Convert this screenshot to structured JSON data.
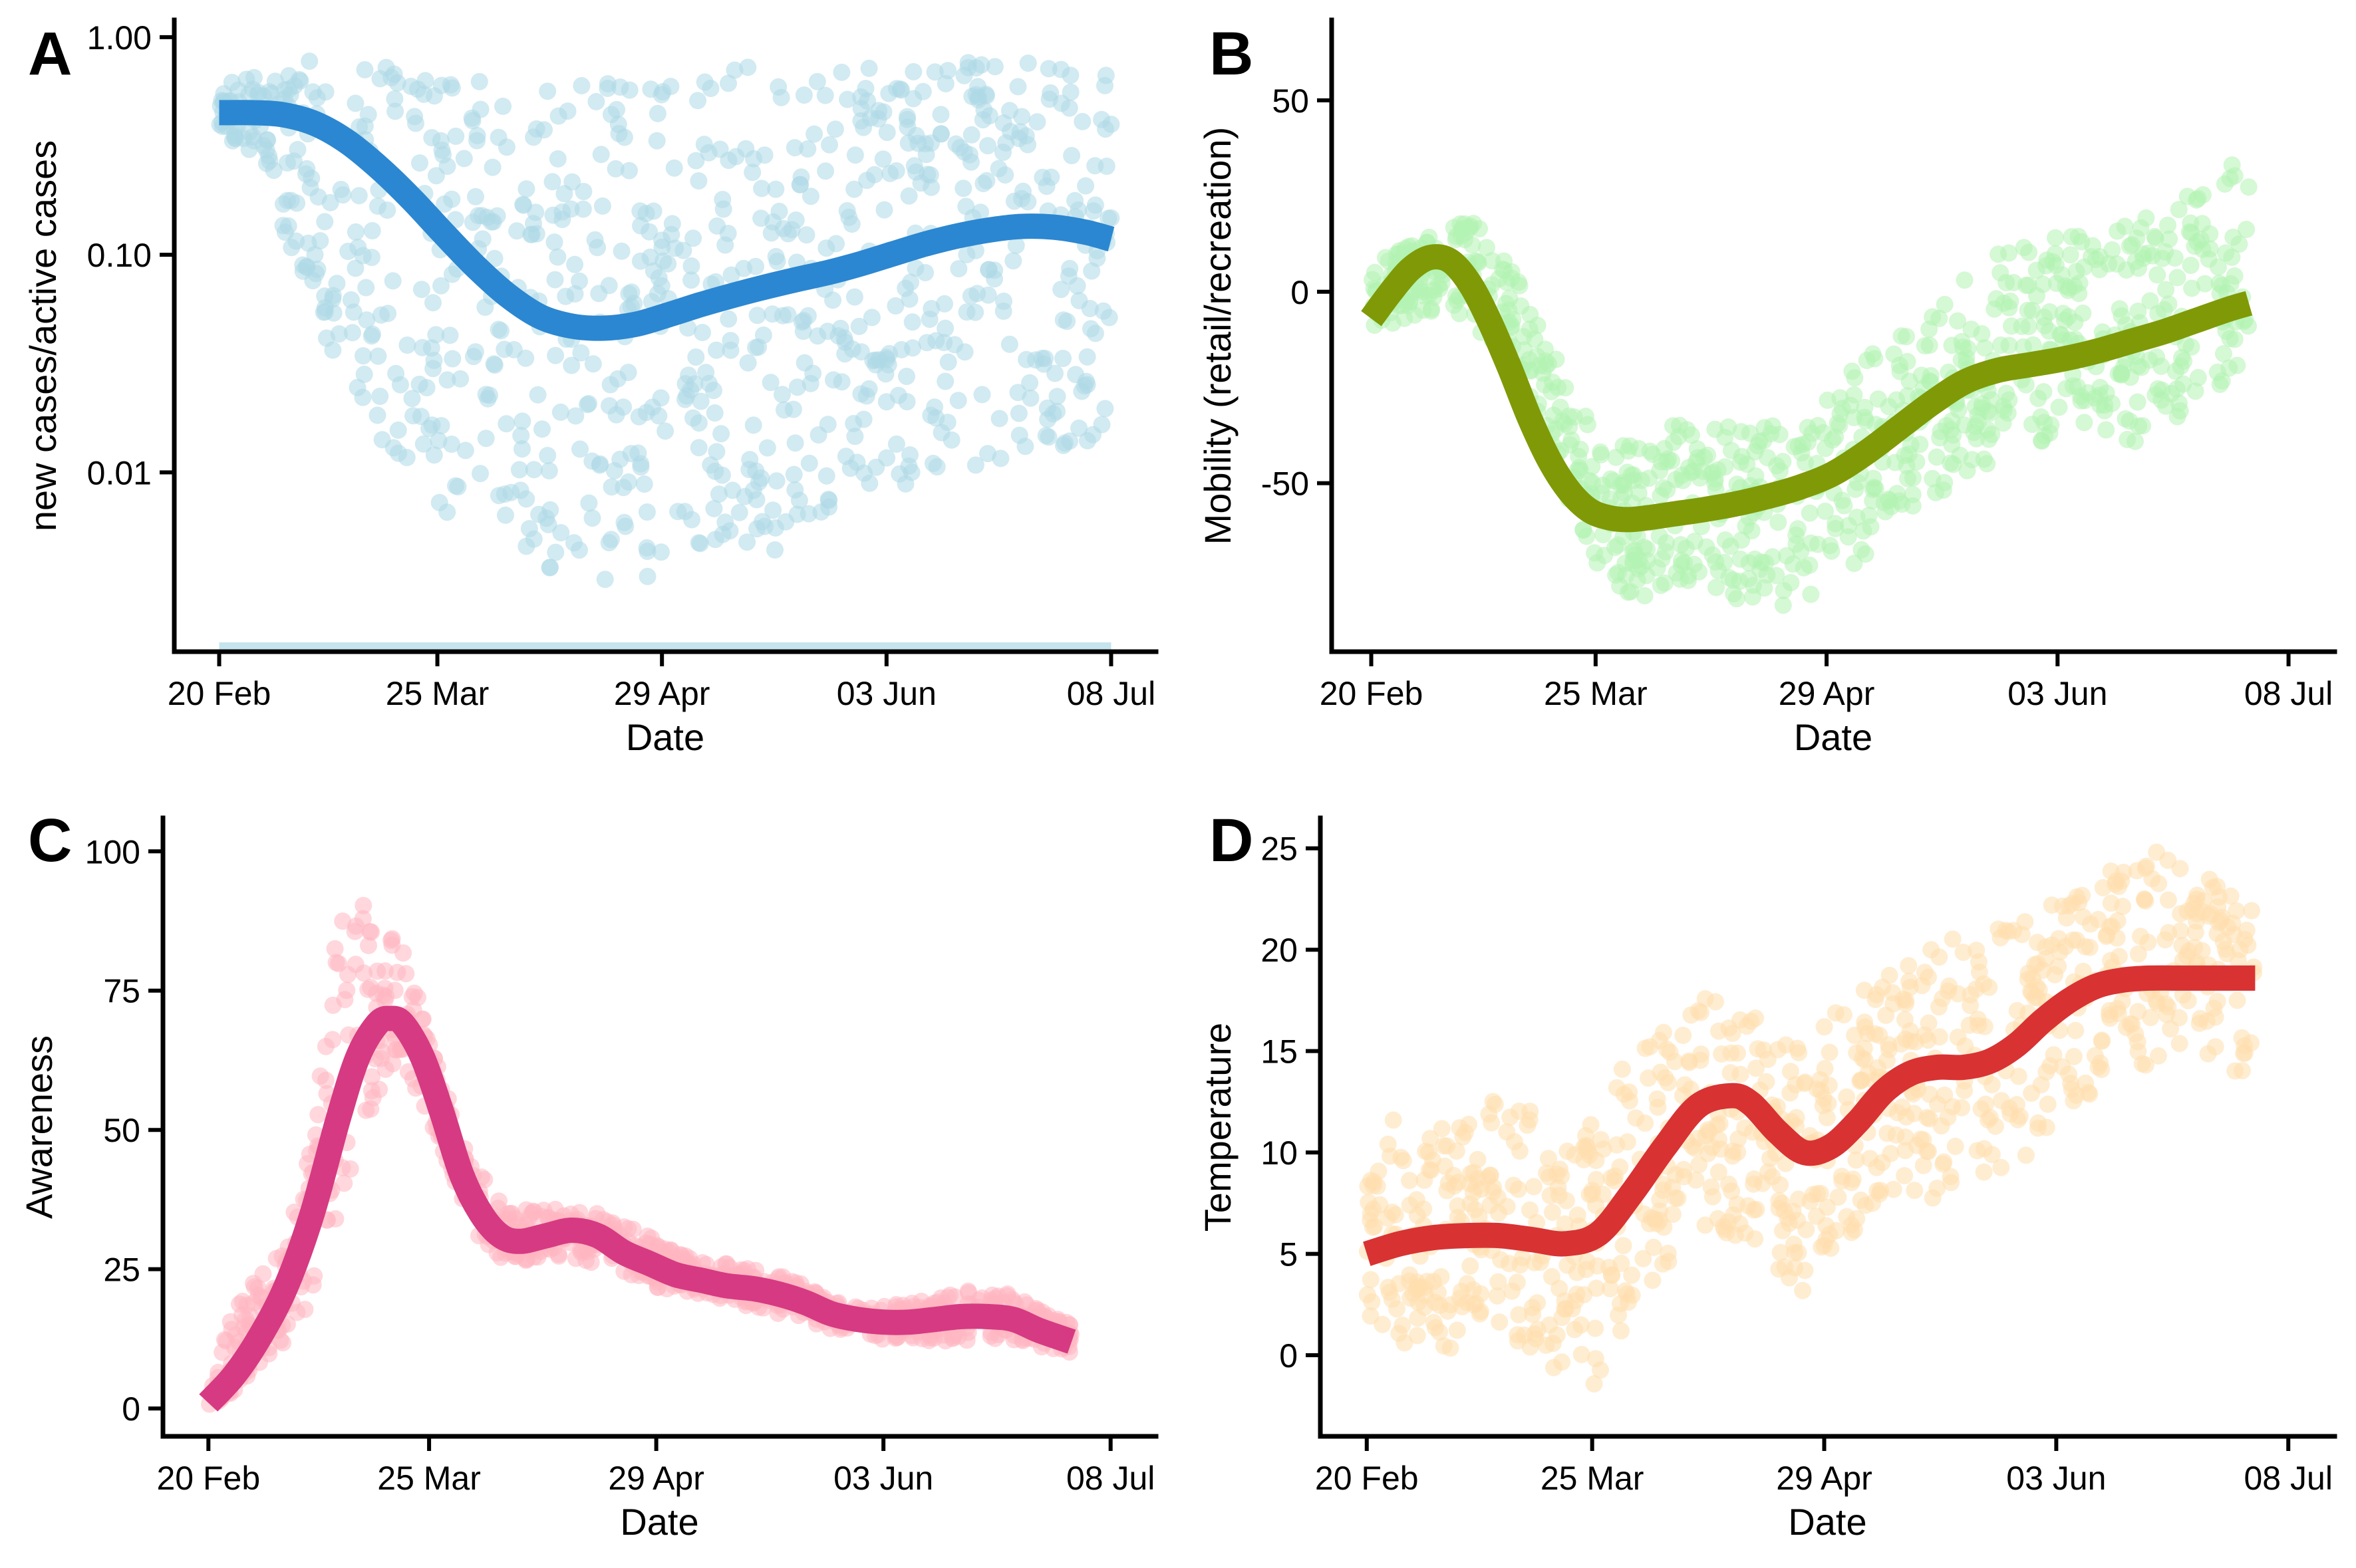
{
  "chart_data": [
    {
      "panel": "A",
      "type": "scatter",
      "xlabel": "Date",
      "ylabel": "new cases/active cases",
      "x_ticks": [
        "20 Feb",
        "25 Mar",
        "29 Apr",
        "03 Jun",
        "08 Jul"
      ],
      "x_tick_days": [
        0,
        34,
        69,
        104,
        139
      ],
      "xlim": [
        -7,
        146
      ],
      "yscale": "log",
      "y_ticks": [
        "0.01",
        "0.10",
        "1.00"
      ],
      "y_tick_values": [
        0.01,
        0.1,
        1.0
      ],
      "ylim": [
        0.0015,
        1.2
      ],
      "grid": false,
      "point_color": "#ADD8E6",
      "line_color": "#2B87D1",
      "series": [
        {
          "kind": "smooth",
          "x": [
            0,
            5,
            10,
            15,
            20,
            25,
            30,
            35,
            40,
            45,
            50,
            55,
            60,
            65,
            70,
            75,
            80,
            85,
            90,
            95,
            100,
            105,
            110,
            115,
            120,
            125,
            130,
            135,
            139
          ],
          "y": [
            0.45,
            0.45,
            0.44,
            0.4,
            0.33,
            0.25,
            0.18,
            0.125,
            0.088,
            0.065,
            0.052,
            0.047,
            0.046,
            0.048,
            0.053,
            0.059,
            0.065,
            0.071,
            0.077,
            0.083,
            0.091,
            0.101,
            0.112,
            0.122,
            0.13,
            0.135,
            0.134,
            0.127,
            0.118
          ]
        }
      ],
      "scatter_band": {
        "x": [
          0,
          5,
          10,
          15,
          20,
          25,
          30,
          35,
          40,
          45,
          50,
          55,
          60,
          65,
          70,
          75,
          80,
          85,
          90,
          95,
          100,
          105,
          110,
          115,
          120,
          125,
          130,
          135,
          139
        ],
        "low": [
          0.35,
          0.3,
          0.12,
          0.05,
          0.025,
          0.012,
          0.008,
          0.006,
          0.005,
          0.004,
          0.0035,
          0.003,
          0.003,
          0.003,
          0.0035,
          0.004,
          0.004,
          0.004,
          0.005,
          0.006,
          0.007,
          0.008,
          0.009,
          0.01,
          0.011,
          0.012,
          0.012,
          0.01,
          0.008
        ],
        "high": [
          0.6,
          0.65,
          0.7,
          0.8,
          0.85,
          0.88,
          0.85,
          0.75,
          0.65,
          0.6,
          0.58,
          0.6,
          0.62,
          0.65,
          0.68,
          0.7,
          0.72,
          0.74,
          0.75,
          0.76,
          0.77,
          0.78,
          0.78,
          0.78,
          0.78,
          0.78,
          0.78,
          0.78,
          0.78
        ]
      }
    },
    {
      "panel": "B",
      "type": "scatter",
      "xlabel": "Date",
      "ylabel": "Mobility (retail/recreation)",
      "x_ticks": [
        "20 Feb",
        "25 Mar",
        "29 Apr",
        "03 Jun",
        "08 Jul"
      ],
      "x_tick_days": [
        0,
        34,
        69,
        104,
        139
      ],
      "xlim": [
        -6,
        146
      ],
      "y_ticks": [
        "-50",
        "0",
        "50"
      ],
      "y_tick_values": [
        -50,
        0,
        50
      ],
      "ylim": [
        -94,
        71
      ],
      "grid": false,
      "point_color": "#B2F2B2",
      "line_color": "#7F9A06",
      "series": [
        {
          "kind": "smooth",
          "x": [
            0,
            3,
            6,
            9,
            12,
            15,
            18,
            21,
            24,
            27,
            30,
            33,
            36,
            39,
            42,
            46,
            50,
            55,
            60,
            65,
            70,
            75,
            80,
            85,
            90,
            95,
            100,
            105,
            110,
            115,
            120,
            125,
            130,
            133
          ],
          "y": [
            -7,
            0,
            6,
            9,
            8,
            2,
            -8,
            -20,
            -33,
            -44,
            -52,
            -57,
            -59,
            -59.5,
            -59,
            -58,
            -57,
            -55.5,
            -53.5,
            -51,
            -47.5,
            -42,
            -35.5,
            -29,
            -23.5,
            -20.5,
            -19,
            -17.5,
            -15.5,
            -13,
            -10.5,
            -7.5,
            -4.5,
            -3
          ]
        }
      ],
      "scatter_band": {
        "x": [
          0,
          5,
          10,
          15,
          20,
          25,
          30,
          35,
          40,
          45,
          50,
          55,
          60,
          65,
          70,
          75,
          80,
          85,
          90,
          95,
          100,
          105,
          110,
          115,
          120,
          125,
          130,
          133
        ],
        "low": [
          -10,
          -8,
          -5,
          -8,
          -20,
          -35,
          -55,
          -75,
          -80,
          -78,
          -75,
          -80,
          -82,
          -82,
          -75,
          -70,
          -60,
          -55,
          -50,
          -45,
          -42,
          -40,
          -38,
          -40,
          -35,
          -30,
          -25,
          -20
        ],
        "high": [
          8,
          12,
          15,
          20,
          10,
          -5,
          -25,
          -40,
          -40,
          -35,
          -30,
          -35,
          -35,
          -30,
          -25,
          -15,
          -10,
          -5,
          5,
          10,
          15,
          15,
          15,
          20,
          25,
          30,
          35,
          35
        ]
      }
    },
    {
      "panel": "C",
      "type": "scatter",
      "xlabel": "Date",
      "ylabel": "Awareness",
      "x_ticks": [
        "20 Feb",
        "25 Mar",
        "29 Apr",
        "03 Jun",
        "08 Jul"
      ],
      "x_tick_days": [
        0,
        34,
        69,
        104,
        139
      ],
      "xlim": [
        -7,
        146
      ],
      "y_ticks": [
        "0",
        "25",
        "50",
        "75",
        "100"
      ],
      "y_tick_values": [
        0,
        25,
        50,
        75,
        100
      ],
      "ylim": [
        -5,
        106
      ],
      "grid": false,
      "point_color": "#FFB6C1",
      "line_color": "#D63A82",
      "series": [
        {
          "kind": "smooth",
          "x": [
            0,
            4,
            8,
            12,
            16,
            20,
            23,
            26,
            28,
            30,
            33,
            36,
            39,
            42,
            45,
            48,
            52,
            56,
            60,
            64,
            68,
            72,
            76,
            80,
            84,
            88,
            92,
            96,
            100,
            104,
            108,
            112,
            116,
            120,
            124,
            128,
            133
          ],
          "y": [
            1,
            6,
            13,
            22,
            35,
            52,
            63,
            69,
            70,
            69,
            63,
            53,
            42,
            35,
            31,
            30,
            31,
            32,
            31,
            28,
            26,
            24,
            23,
            22,
            21.5,
            20.5,
            19,
            17,
            16,
            15.5,
            15.5,
            16,
            16.5,
            16.5,
            16,
            14,
            12
          ]
        }
      ],
      "scatter_band": {
        "x": [
          0,
          4,
          8,
          12,
          16,
          20,
          23,
          26,
          28,
          30,
          33,
          36,
          39,
          42,
          45,
          48,
          52,
          56,
          60,
          64,
          68,
          72,
          76,
          80,
          84,
          88,
          92,
          96,
          100,
          104,
          108,
          112,
          116,
          120,
          124,
          128,
          133
        ],
        "low": [
          0,
          3,
          8,
          12,
          20,
          35,
          45,
          55,
          60,
          62,
          55,
          45,
          37,
          30,
          27,
          26,
          27,
          27,
          26,
          24,
          22,
          21,
          20,
          19,
          18,
          17,
          16,
          14,
          13,
          12,
          12,
          12,
          12,
          12,
          12,
          11,
          10
        ],
        "high": [
          3,
          18,
          25,
          30,
          48,
          90,
          95,
          87,
          85,
          83,
          72,
          60,
          48,
          42,
          37,
          36,
          36,
          36,
          35,
          33,
          31,
          28,
          27,
          26,
          25,
          24,
          22,
          20,
          19,
          19,
          19,
          20,
          22,
          21,
          21,
          18,
          15
        ]
      }
    },
    {
      "panel": "D",
      "type": "scatter",
      "xlabel": "Date",
      "ylabel": "Temperature",
      "x_ticks": [
        "20 Feb",
        "25 Mar",
        "29 Apr",
        "03 Jun",
        "08 Jul"
      ],
      "x_tick_days": [
        0,
        34,
        69,
        104,
        139
      ],
      "xlim": [
        -7,
        146
      ],
      "y_ticks": [
        "0",
        "5",
        "10",
        "15",
        "20",
        "25"
      ],
      "y_tick_values": [
        0,
        5,
        10,
        15,
        20,
        25
      ],
      "ylim": [
        -4,
        26.5
      ],
      "grid": false,
      "point_color": "#FFDEAD",
      "line_color": "#D93232",
      "series": [
        {
          "kind": "smooth",
          "x": [
            0,
            5,
            10,
            15,
            20,
            25,
            30,
            35,
            40,
            45,
            50,
            55,
            58,
            62,
            66,
            70,
            74,
            78,
            82,
            86,
            90,
            94,
            98,
            102,
            106,
            110,
            114,
            118,
            122,
            126,
            130,
            134
          ],
          "y": [
            5,
            5.5,
            5.8,
            5.9,
            5.9,
            5.7,
            5.5,
            6,
            8,
            10.3,
            12.3,
            12.8,
            12.4,
            11,
            10,
            10.3,
            11.5,
            13,
            13.9,
            14.2,
            14.2,
            14.5,
            15.3,
            16.5,
            17.5,
            18.2,
            18.5,
            18.6,
            18.6,
            18.6,
            18.6,
            18.6
          ]
        }
      ],
      "scatter_band": {
        "x": [
          0,
          5,
          10,
          15,
          20,
          25,
          30,
          35,
          40,
          45,
          50,
          55,
          58,
          62,
          66,
          70,
          74,
          78,
          82,
          86,
          90,
          94,
          98,
          102,
          106,
          110,
          114,
          118,
          122,
          126,
          130,
          134
        ],
        "low": [
          0.5,
          0,
          -0.5,
          1,
          1.5,
          0,
          -1,
          -1.5,
          1,
          4,
          6,
          6,
          5,
          4,
          3,
          5,
          6,
          8,
          8,
          7,
          9,
          8,
          9,
          11,
          12,
          13,
          14,
          14,
          15,
          15,
          14,
          14
        ],
        "high": [
          10,
          12,
          11,
          12,
          13,
          12,
          10,
          12,
          15,
          16,
          18,
          17,
          17,
          16,
          15,
          17,
          18,
          19,
          20,
          20,
          21,
          21,
          22,
          22,
          23,
          24,
          24,
          25,
          25,
          24,
          23,
          22
        ]
      }
    }
  ]
}
